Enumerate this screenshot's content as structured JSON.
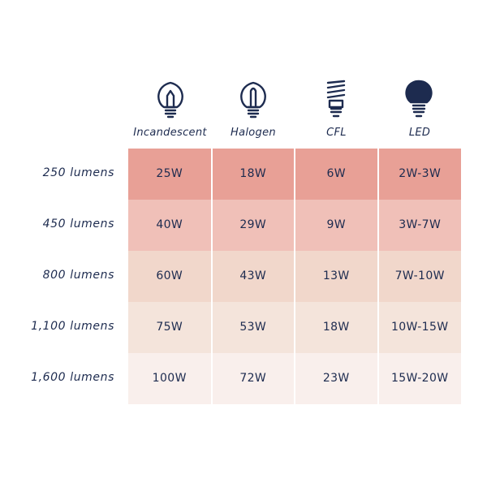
{
  "table": {
    "columns": [
      "Incandescent",
      "Halogen",
      "CFL",
      "LED"
    ],
    "rows": [
      {
        "label": "250 lumens",
        "cells": [
          "25W",
          "18W",
          "6W",
          "2W-3W"
        ]
      },
      {
        "label": "450 lumens",
        "cells": [
          "40W",
          "29W",
          "9W",
          "3W-7W"
        ]
      },
      {
        "label": "800 lumens",
        "cells": [
          "60W",
          "43W",
          "13W",
          "7W-10W"
        ]
      },
      {
        "label": "1,100 lumens",
        "cells": [
          "75W",
          "53W",
          "18W",
          "10W-15W"
        ]
      },
      {
        "label": "1,600 lumens",
        "cells": [
          "100W",
          "72W",
          "23W",
          "15W-20W"
        ]
      }
    ]
  }
}
